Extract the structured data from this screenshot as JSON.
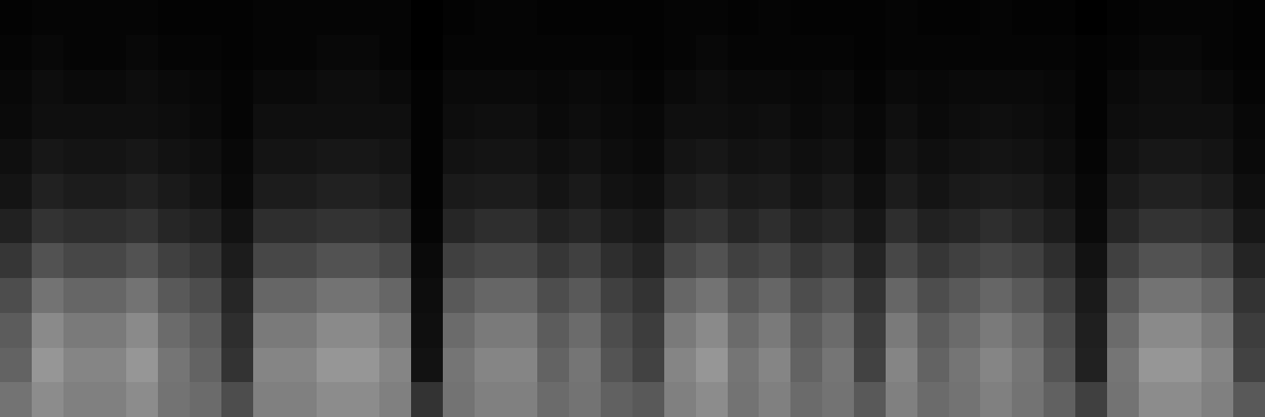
{
  "chart_data": {
    "type": "heatmap",
    "tick_labels": false,
    "grid": false,
    "zlim": [
      0,
      1
    ],
    "cells": [
      [
        0.01,
        0.02,
        0.02,
        0.02,
        0.02,
        0.01,
        0.01,
        0.01,
        0.02,
        0.02,
        0.02,
        0.02,
        0.02,
        0,
        0.01,
        0.02,
        0.02,
        0.01,
        0.01,
        0.01,
        0.01,
        0.02,
        0.02,
        0.01,
        0.02,
        0.01,
        0.01,
        0.01,
        0.02,
        0.01,
        0.01,
        0.02,
        0.01,
        0.01,
        0,
        0.01,
        0.02,
        0.02,
        0.02,
        0.01
      ],
      [
        0.02,
        0.03,
        0.02,
        0.02,
        0.03,
        0.02,
        0.02,
        0.01,
        0.02,
        0.02,
        0.03,
        0.03,
        0.02,
        0,
        0.02,
        0.02,
        0.02,
        0.02,
        0.02,
        0.02,
        0.01,
        0.02,
        0.03,
        0.02,
        0.02,
        0.02,
        0.02,
        0.01,
        0.02,
        0.02,
        0.02,
        0.02,
        0.02,
        0.02,
        0.01,
        0.02,
        0.03,
        0.03,
        0.02,
        0.01
      ],
      [
        0.03,
        0.05,
        0.04,
        0.04,
        0.05,
        0.04,
        0.03,
        0.02,
        0.04,
        0.04,
        0.05,
        0.05,
        0.04,
        0.01,
        0.04,
        0.04,
        0.04,
        0.03,
        0.04,
        0.03,
        0.02,
        0.04,
        0.05,
        0.04,
        0.04,
        0.03,
        0.04,
        0.02,
        0.04,
        0.03,
        0.04,
        0.04,
        0.04,
        0.03,
        0.01,
        0.04,
        0.05,
        0.05,
        0.04,
        0.02
      ],
      [
        0.04,
        0.06,
        0.06,
        0.06,
        0.06,
        0.05,
        0.04,
        0.02,
        0.06,
        0.06,
        0.06,
        0.06,
        0.06,
        0.01,
        0.05,
        0.06,
        0.06,
        0.04,
        0.05,
        0.04,
        0.03,
        0.06,
        0.06,
        0.05,
        0.06,
        0.04,
        0.05,
        0.03,
        0.06,
        0.04,
        0.05,
        0.06,
        0.05,
        0.04,
        0.01,
        0.05,
        0.06,
        0.06,
        0.06,
        0.03
      ],
      [
        0.06,
        0.09,
        0.08,
        0.08,
        0.09,
        0.07,
        0.06,
        0.03,
        0.08,
        0.08,
        0.09,
        0.09,
        0.08,
        0.01,
        0.07,
        0.08,
        0.08,
        0.06,
        0.07,
        0.05,
        0.04,
        0.08,
        0.09,
        0.07,
        0.08,
        0.06,
        0.07,
        0.04,
        0.08,
        0.06,
        0.07,
        0.08,
        0.07,
        0.05,
        0.02,
        0.07,
        0.09,
        0.09,
        0.08,
        0.04
      ],
      [
        0.08,
        0.13,
        0.11,
        0.11,
        0.13,
        0.1,
        0.08,
        0.04,
        0.11,
        0.11,
        0.13,
        0.13,
        0.11,
        0.01,
        0.1,
        0.11,
        0.11,
        0.08,
        0.1,
        0.07,
        0.06,
        0.11,
        0.13,
        0.1,
        0.11,
        0.08,
        0.1,
        0.06,
        0.11,
        0.08,
        0.1,
        0.11,
        0.1,
        0.07,
        0.03,
        0.1,
        0.13,
        0.13,
        0.11,
        0.06
      ],
      [
        0.13,
        0.2,
        0.18,
        0.18,
        0.2,
        0.15,
        0.13,
        0.07,
        0.18,
        0.18,
        0.2,
        0.2,
        0.18,
        0.02,
        0.15,
        0.18,
        0.18,
        0.13,
        0.15,
        0.11,
        0.09,
        0.18,
        0.2,
        0.15,
        0.18,
        0.13,
        0.15,
        0.09,
        0.18,
        0.13,
        0.15,
        0.18,
        0.15,
        0.11,
        0.04,
        0.15,
        0.2,
        0.2,
        0.18,
        0.09
      ],
      [
        0.21,
        0.32,
        0.28,
        0.28,
        0.32,
        0.25,
        0.21,
        0.11,
        0.28,
        0.28,
        0.32,
        0.32,
        0.28,
        0.04,
        0.25,
        0.28,
        0.28,
        0.21,
        0.25,
        0.18,
        0.14,
        0.28,
        0.32,
        0.25,
        0.28,
        0.21,
        0.25,
        0.14,
        0.28,
        0.21,
        0.25,
        0.28,
        0.25,
        0.18,
        0.07,
        0.25,
        0.32,
        0.32,
        0.28,
        0.14
      ],
      [
        0.3,
        0.45,
        0.4,
        0.4,
        0.45,
        0.35,
        0.3,
        0.15,
        0.4,
        0.4,
        0.45,
        0.45,
        0.4,
        0.05,
        0.35,
        0.4,
        0.4,
        0.3,
        0.35,
        0.25,
        0.2,
        0.4,
        0.45,
        0.35,
        0.4,
        0.3,
        0.35,
        0.2,
        0.4,
        0.3,
        0.35,
        0.4,
        0.35,
        0.25,
        0.1,
        0.35,
        0.45,
        0.45,
        0.4,
        0.2
      ],
      [
        0.36,
        0.54,
        0.48,
        0.48,
        0.54,
        0.42,
        0.36,
        0.18,
        0.48,
        0.48,
        0.54,
        0.54,
        0.48,
        0.06,
        0.42,
        0.48,
        0.48,
        0.36,
        0.42,
        0.3,
        0.24,
        0.48,
        0.54,
        0.42,
        0.48,
        0.36,
        0.42,
        0.24,
        0.48,
        0.36,
        0.42,
        0.48,
        0.42,
        0.3,
        0.12,
        0.42,
        0.54,
        0.54,
        0.48,
        0.24
      ],
      [
        0.39,
        0.59,
        0.52,
        0.52,
        0.59,
        0.46,
        0.39,
        0.2,
        0.52,
        0.52,
        0.59,
        0.59,
        0.52,
        0.07,
        0.46,
        0.52,
        0.52,
        0.39,
        0.46,
        0.33,
        0.26,
        0.52,
        0.59,
        0.46,
        0.52,
        0.39,
        0.46,
        0.26,
        0.52,
        0.39,
        0.46,
        0.52,
        0.46,
        0.33,
        0.13,
        0.46,
        0.59,
        0.59,
        0.52,
        0.26
      ],
      [
        0.45,
        0.55,
        0.5,
        0.5,
        0.55,
        0.45,
        0.42,
        0.3,
        0.5,
        0.5,
        0.55,
        0.55,
        0.5,
        0.2,
        0.45,
        0.5,
        0.5,
        0.42,
        0.45,
        0.38,
        0.35,
        0.5,
        0.55,
        0.45,
        0.5,
        0.42,
        0.45,
        0.35,
        0.5,
        0.42,
        0.45,
        0.5,
        0.45,
        0.38,
        0.25,
        0.45,
        0.55,
        0.55,
        0.5,
        0.35
      ]
    ]
  }
}
